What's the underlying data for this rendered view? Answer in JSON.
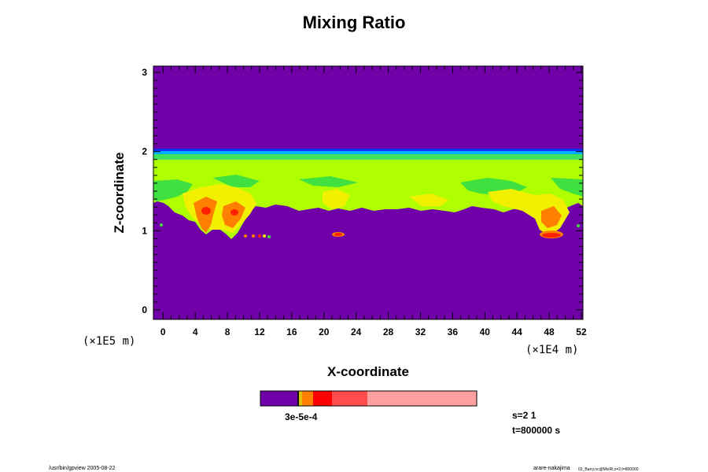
{
  "chart_data": {
    "type": "heatmap",
    "title": "Mixing Ratio",
    "xlabel": "X-coordinate",
    "ylabel": "Z-coordinate",
    "x_scale_note": "(×1E4  m)",
    "y_scale_note": "(×1E5  m)",
    "xlim": [
      -1.2,
      52.2
    ],
    "ylim": [
      -0.12,
      3.08
    ],
    "xticks": [
      "0",
      "4",
      "8",
      "12",
      "16",
      "20",
      "24",
      "28",
      "32",
      "36",
      "40",
      "44",
      "48",
      "52"
    ],
    "yticks": [
      "0",
      "1",
      "2",
      "3"
    ],
    "colorbar": {
      "colors": [
        "#7000a8",
        "#e0c000",
        "#ff8000",
        "#ff0000",
        "#ff4c4c",
        "#ffa0a0"
      ],
      "label": "3e-5e-4"
    },
    "colors": {
      "background": "#7000a8",
      "layer_blue": "#0040ff",
      "layer_cyan": "#00c0ff",
      "layer_green": "#40e040",
      "layer_yellowgreen": "#b0ff00",
      "layer_yellow": "#f0f000",
      "layer_orange": "#ff8000",
      "layer_red": "#ff2000"
    }
  },
  "info": {
    "step": "s=2 1",
    "time": "t=800000 s"
  },
  "footer": {
    "left": "/usr/bin/gpview 2005-08-22",
    "right": "arare-nakajima",
    "right_sub": "03_Barry.nc@MixRt,x=2,t=800000"
  }
}
